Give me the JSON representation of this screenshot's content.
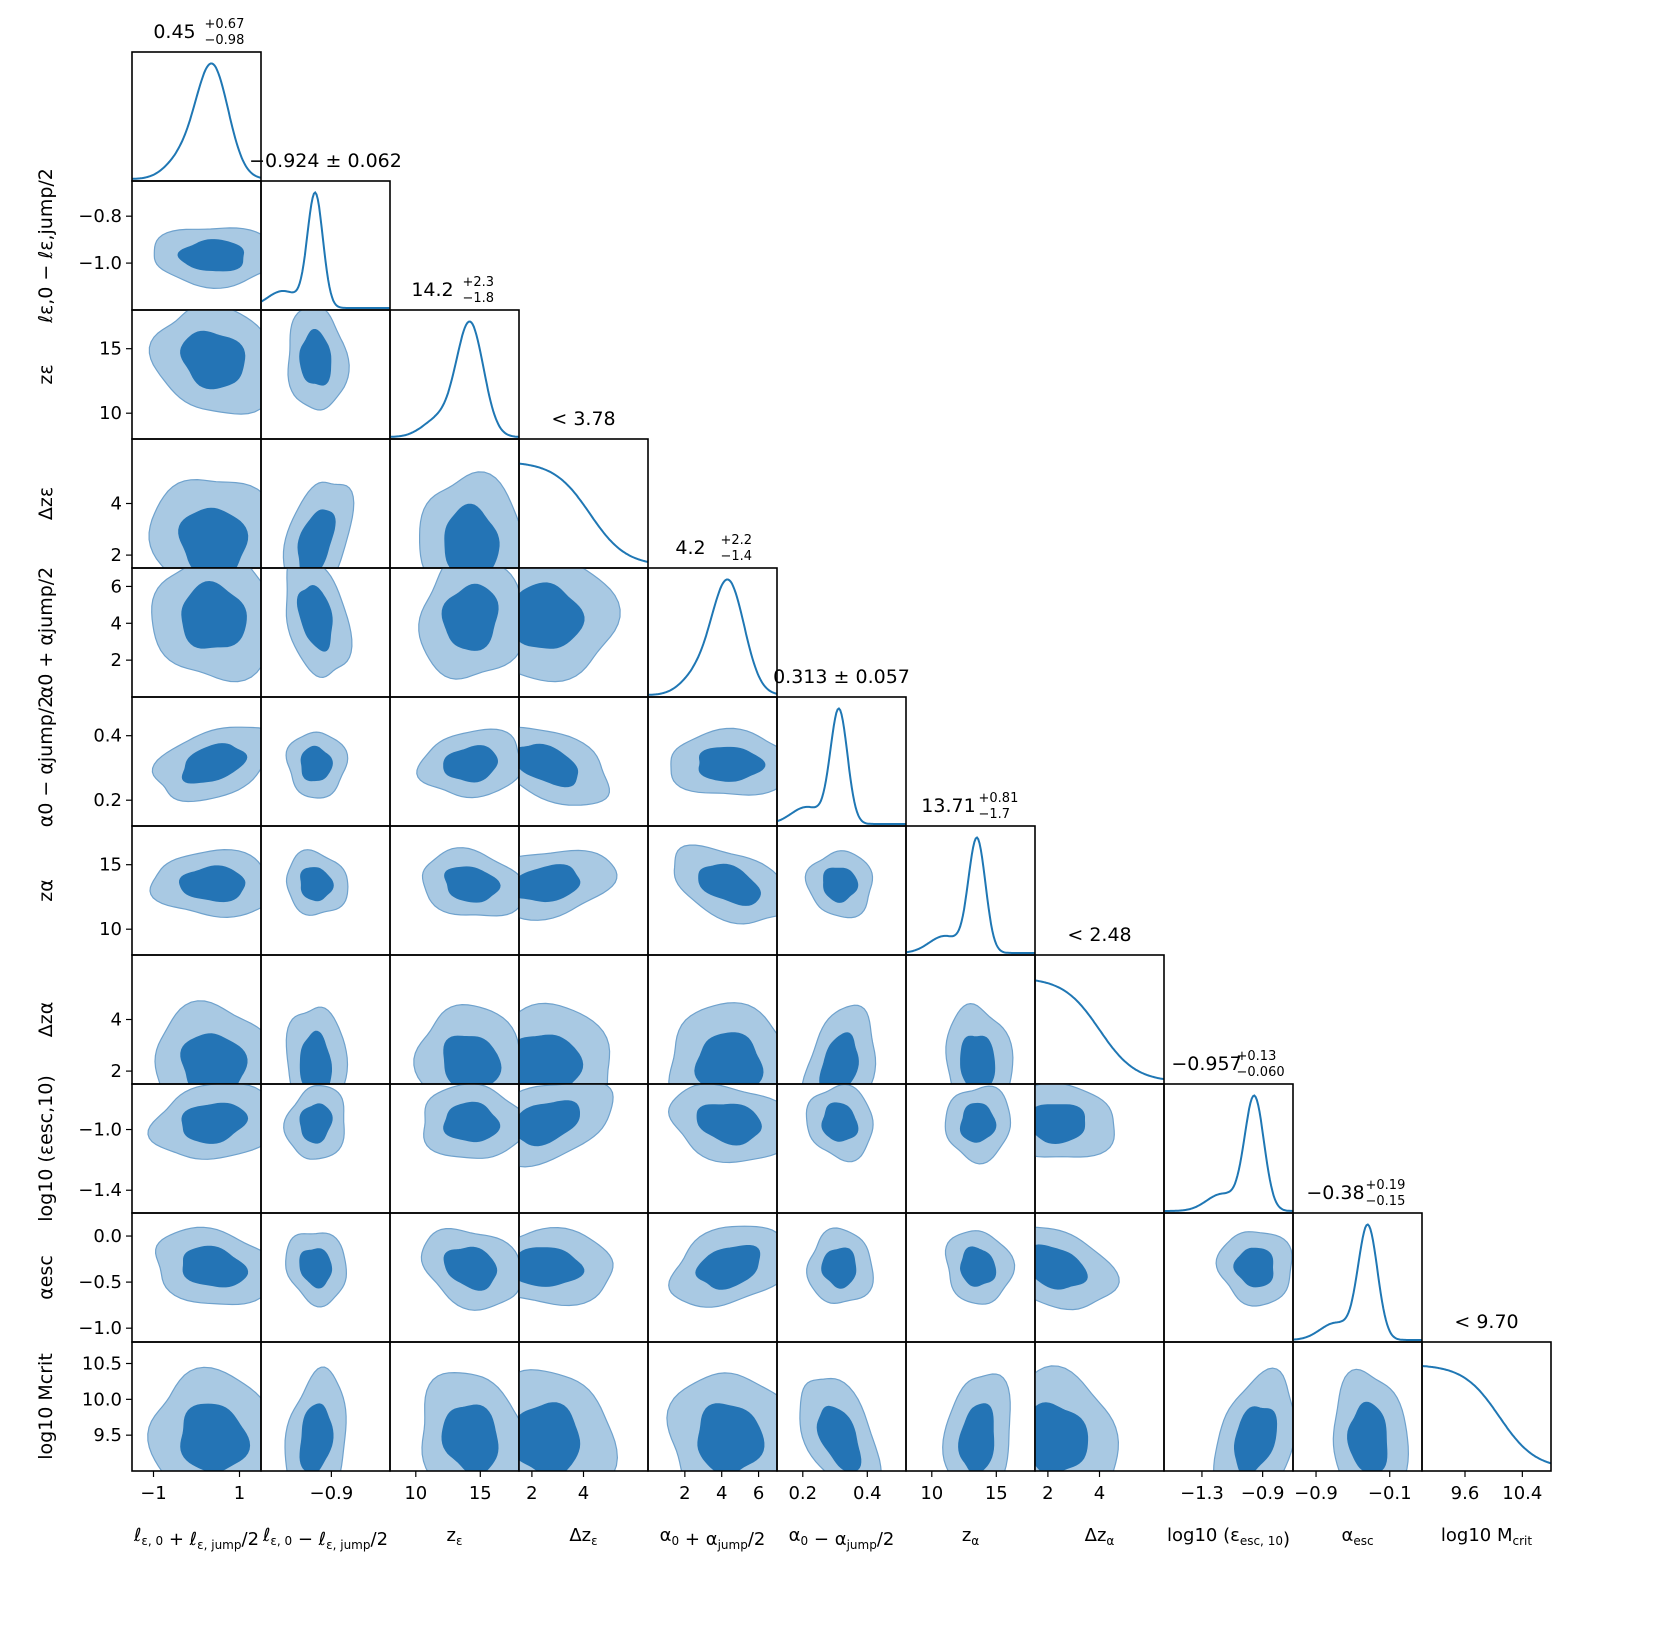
{
  "colors": {
    "line": "#1f77b4",
    "inner_fill": "#2474b5",
    "outer_fill": "#a9c9e3",
    "outer_stroke": "#6fa2cd",
    "frame": "#000000"
  },
  "chart_data": {
    "type": "corner",
    "grid": false,
    "params": [
      {
        "key": "l0p",
        "axis_label": "ℓε,0 + ℓε,jump/2",
        "range": [
          -1.5,
          1.5
        ],
        "ticks": [
          -1,
          1
        ],
        "tick_labels": [
          "−1",
          "1"
        ],
        "title": "0.45 +0.67 −0.98",
        "title_main": "0.45",
        "title_up": "+0.67",
        "title_dn": "−0.98",
        "median": 0.45,
        "err_plus": 0.67,
        "err_minus": 0.98
      },
      {
        "key": "l0m",
        "axis_label": "ℓε,0 − ℓε,jump/2",
        "range": [
          -1.2,
          -0.65
        ],
        "ticks": [
          -0.8,
          -1.0
        ],
        "tick_labels": [
          "−0.8",
          "−1.0"
        ],
        "x_ticks": [
          -0.9
        ],
        "x_tick_labels": [
          "−0.9"
        ],
        "title": "−0.924 ± 0.062",
        "title_main": "−0.924 ± 0.062",
        "median": -0.924,
        "err": 0.062
      },
      {
        "key": "zeps",
        "axis_label": "zε",
        "range": [
          8,
          18
        ],
        "ticks": [
          10,
          15
        ],
        "tick_labels": [
          "10",
          "15"
        ],
        "title": "14.2 +2.3 −1.8",
        "title_main": "14.2",
        "title_up": "+2.3",
        "title_dn": "−1.8",
        "median": 14.2,
        "err_plus": 2.3,
        "err_minus": 1.8
      },
      {
        "key": "dzeps",
        "axis_label": "Δzε",
        "range": [
          1.5,
          6.5
        ],
        "ticks": [
          2,
          4
        ],
        "tick_labels": [
          "2",
          "4"
        ],
        "title": "< 3.78",
        "title_main": "< 3.78",
        "upper_limit": 3.78
      },
      {
        "key": "a0p",
        "axis_label": "α0 + αjump/2",
        "range": [
          0,
          7
        ],
        "ticks": [
          2,
          4,
          6
        ],
        "tick_labels": [
          "2",
          "4",
          "6"
        ],
        "title": "4.2 +2.2 −1.4",
        "title_main": "4.2",
        "title_up": "+2.2",
        "title_dn": "−1.4",
        "median": 4.2,
        "err_plus": 2.2,
        "err_minus": 1.4
      },
      {
        "key": "a0m",
        "axis_label": "α0 − αjump/2",
        "range": [
          0.12,
          0.52
        ],
        "ticks": [
          0.2,
          0.4
        ],
        "tick_labels": [
          "0.2",
          "0.4"
        ],
        "x_ticks": [
          0.2,
          0.4
        ],
        "x_tick_labels": [
          "0.2",
          "0.4"
        ],
        "title": "0.313 ± 0.057",
        "title_main": "0.313 ± 0.057",
        "median": 0.313,
        "err": 0.057
      },
      {
        "key": "zalpha",
        "axis_label": "zα",
        "range": [
          8,
          18
        ],
        "ticks": [
          10,
          15
        ],
        "tick_labels": [
          "10",
          "15"
        ],
        "title": "13.71 +0.81 −1.7",
        "title_main": "13.71",
        "title_up": "+0.81",
        "title_dn": "−1.7",
        "median": 13.71,
        "err_plus": 0.81,
        "err_minus": 1.7
      },
      {
        "key": "dzalpha",
        "axis_label": "Δzα",
        "range": [
          1.5,
          6.5
        ],
        "ticks": [
          2,
          4
        ],
        "tick_labels": [
          "2",
          "4"
        ],
        "title": "< 2.48",
        "title_main": "< 2.48",
        "upper_limit": 2.48
      },
      {
        "key": "logesc",
        "axis_label": "log10 (εesc,10)",
        "range": [
          -1.55,
          -0.7
        ],
        "ticks": [
          -1.0,
          -1.4
        ],
        "tick_labels": [
          "−1.0",
          "−1.4"
        ],
        "x_ticks": [
          -1.3,
          -0.9
        ],
        "x_tick_labels": [
          "−1.3",
          "−0.9"
        ],
        "title": "−0.957 +0.13 −0.060",
        "title_main": "−0.957",
        "title_up": "+0.13",
        "title_dn": "−0.060",
        "median": -0.957,
        "err_plus": 0.13,
        "err_minus": 0.06
      },
      {
        "key": "aesc",
        "axis_label": "αesc",
        "range": [
          -1.15,
          0.25
        ],
        "ticks": [
          0.0,
          -0.5,
          -1.0
        ],
        "tick_labels": [
          "0.0",
          "−0.5",
          "−1.0"
        ],
        "x_ticks": [
          -0.9,
          -0.1
        ],
        "x_tick_labels": [
          "−0.9",
          "−0.1"
        ],
        "title": "−0.38 +0.19 −0.15",
        "title_main": "−0.38",
        "title_up": "+0.19",
        "title_dn": "−0.15",
        "median": -0.38,
        "err_plus": 0.19,
        "err_minus": 0.15
      },
      {
        "key": "mcrit",
        "axis_label": "log10 Mcrit",
        "range": [
          9.0,
          10.8
        ],
        "ticks": [
          10.5,
          10.0,
          9.5
        ],
        "tick_labels": [
          "10.5",
          "10.0",
          "9.5"
        ],
        "x_ticks": [
          9.6,
          10.4
        ],
        "x_tick_labels": [
          "9.6",
          "10.4"
        ],
        "title": "< 9.70",
        "title_main": "< 9.70",
        "upper_limit": 9.7
      }
    ],
    "x_axis_labels": [
      {
        "pre": "ℓ",
        "sub": "ε, 0",
        "op": "+",
        "num": "ℓ",
        "num_sub": "ε, jump",
        "den": "2"
      },
      {
        "pre": "ℓ",
        "sub": "ε, 0",
        "op": "−",
        "num": "ℓ",
        "num_sub": "ε, jump",
        "den": "2"
      },
      {
        "pre": "z",
        "sub": "ε"
      },
      {
        "pre": "Δz",
        "sub": "ε"
      },
      {
        "pre": "α",
        "sub": "0",
        "op": "+",
        "num": "α",
        "num_sub": "jump",
        "den": "2"
      },
      {
        "pre": "α",
        "sub": "0",
        "op": "−",
        "num": "α",
        "num_sub": "jump",
        "den": "2"
      },
      {
        "pre": "z",
        "sub": "α"
      },
      {
        "pre": "Δz",
        "sub": "α"
      },
      {
        "pre": "log10 (ε",
        "sub": "esc, 10",
        "post": ")"
      },
      {
        "pre": "α",
        "sub": "esc"
      },
      {
        "pre": "log10 M",
        "sub": "crit"
      }
    ]
  }
}
